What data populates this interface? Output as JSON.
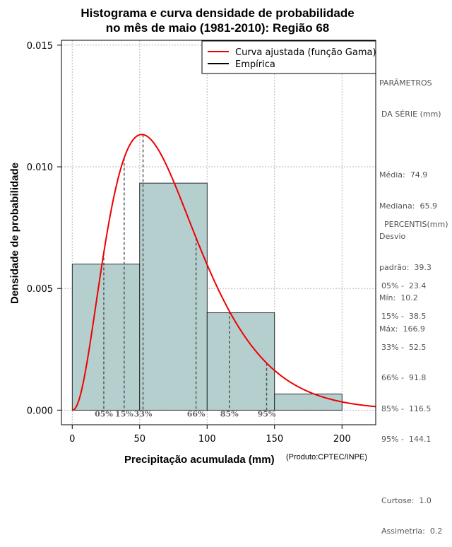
{
  "title": {
    "line1": "Histograma e curva densidade de probabilidade",
    "line2": "no mês de maio (1981-2010): Região 68"
  },
  "credit": "(Produto:CPTEC/INPE)",
  "parameters_panel": {
    "heading_line1": "PARÂMETROS",
    "heading_line2": "DA SÉRIE (mm)",
    "lines": [
      "Média:  74.9",
      "Mediana:  65.9",
      "Desvio",
      "padrão:  39.3",
      "Mín:  10.2",
      "Máx:  166.9"
    ]
  },
  "percentiles_panel": {
    "heading": "PERCENTIS(mm)",
    "lines": [
      "05% -  23.4",
      "15% -  38.5",
      "33% -  52.5",
      "66% -  91.8",
      "85% -  116.5",
      "95% -  144.1"
    ],
    "stats": [
      "Curtose:  1.0",
      "Assimetria:  0.2"
    ]
  },
  "chart_data": {
    "type": "histogram_with_density",
    "xlabel": "Precipitação acumulada (mm)",
    "ylabel": "Densidade de probabilidade",
    "xlim": [
      -8,
      225
    ],
    "ylim": [
      -0.0006,
      0.0152
    ],
    "x_ticks": [
      0,
      50,
      100,
      150,
      200
    ],
    "x_tick_labels": [
      "0",
      "50",
      "100",
      "150",
      "200"
    ],
    "y_ticks": [
      0.0,
      0.005,
      0.01,
      0.015
    ],
    "y_tick_labels": [
      "0.000",
      "0.005",
      "0.010",
      "0.015"
    ],
    "grid": true,
    "bins": [
      {
        "start": 0,
        "end": 50,
        "density": 0.006
      },
      {
        "start": 50,
        "end": 100,
        "density": 0.00933
      },
      {
        "start": 100,
        "end": 150,
        "density": 0.004
      },
      {
        "start": 150,
        "end": 200,
        "density": 0.000667
      }
    ],
    "bar_color": "#b5cfcf",
    "gamma_fit": {
      "shape": 3.3,
      "scale": 22.4,
      "x_max": 225,
      "color": "#ee0000"
    },
    "percentile_markers": [
      {
        "label": "05%",
        "x": 23.4
      },
      {
        "label": "15%",
        "x": 38.5
      },
      {
        "label": "33%",
        "x": 52.5
      },
      {
        "label": "66%",
        "x": 91.8
      },
      {
        "label": "85%",
        "x": 116.5
      },
      {
        "label": "95%",
        "x": 144.1
      }
    ],
    "legend": {
      "position": "top-right",
      "entries": [
        {
          "label": "Curva ajustada (função Gama)",
          "color": "#ee0000"
        },
        {
          "label": "Empírica",
          "color": "#000000"
        }
      ]
    }
  }
}
